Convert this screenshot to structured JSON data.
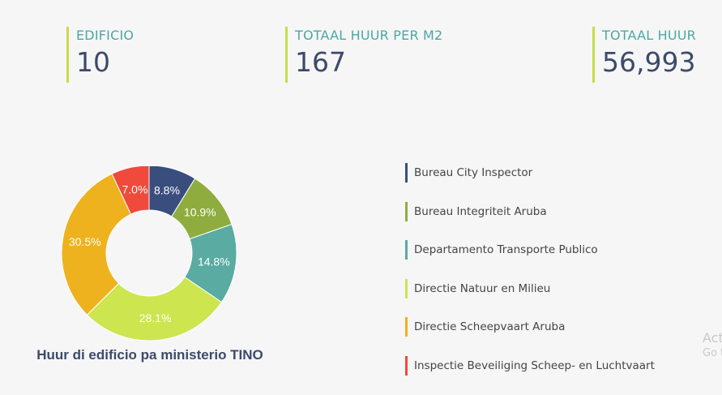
{
  "kpis": [
    {
      "label": "EDIFICIO",
      "value": "10"
    },
    {
      "label": "TOTAAL HUUR PER M2",
      "value": "167"
    },
    {
      "label": "TOTAAL HUUR",
      "value": "56,993"
    }
  ],
  "chart_data": {
    "type": "pie",
    "subtype": "donut",
    "title": "Huur di edificio pa ministerio TINO",
    "legend_position": "right",
    "categories": [
      "Bureau City Inspector",
      "Bureau Integriteit Aruba",
      "Departamento Transporte Publico",
      "Directie Natuur en Milieu",
      "Directie Scheepvaart Aruba",
      "Inspectie Beveiliging Scheep- en Luchtvaart"
    ],
    "values": [
      8.8,
      10.9,
      14.8,
      28.1,
      30.5,
      7.0
    ],
    "data_labels": [
      "8.8%",
      "10.9%",
      "14.8%",
      "28.1%",
      "30.5%",
      "7.0%"
    ],
    "colors": [
      "#3a4e7e",
      "#8fad3f",
      "#5aaba1",
      "#cde54f",
      "#edb21e",
      "#ef4a3b"
    ]
  },
  "watermark": {
    "line1": "Act",
    "line2": "Go t"
  }
}
